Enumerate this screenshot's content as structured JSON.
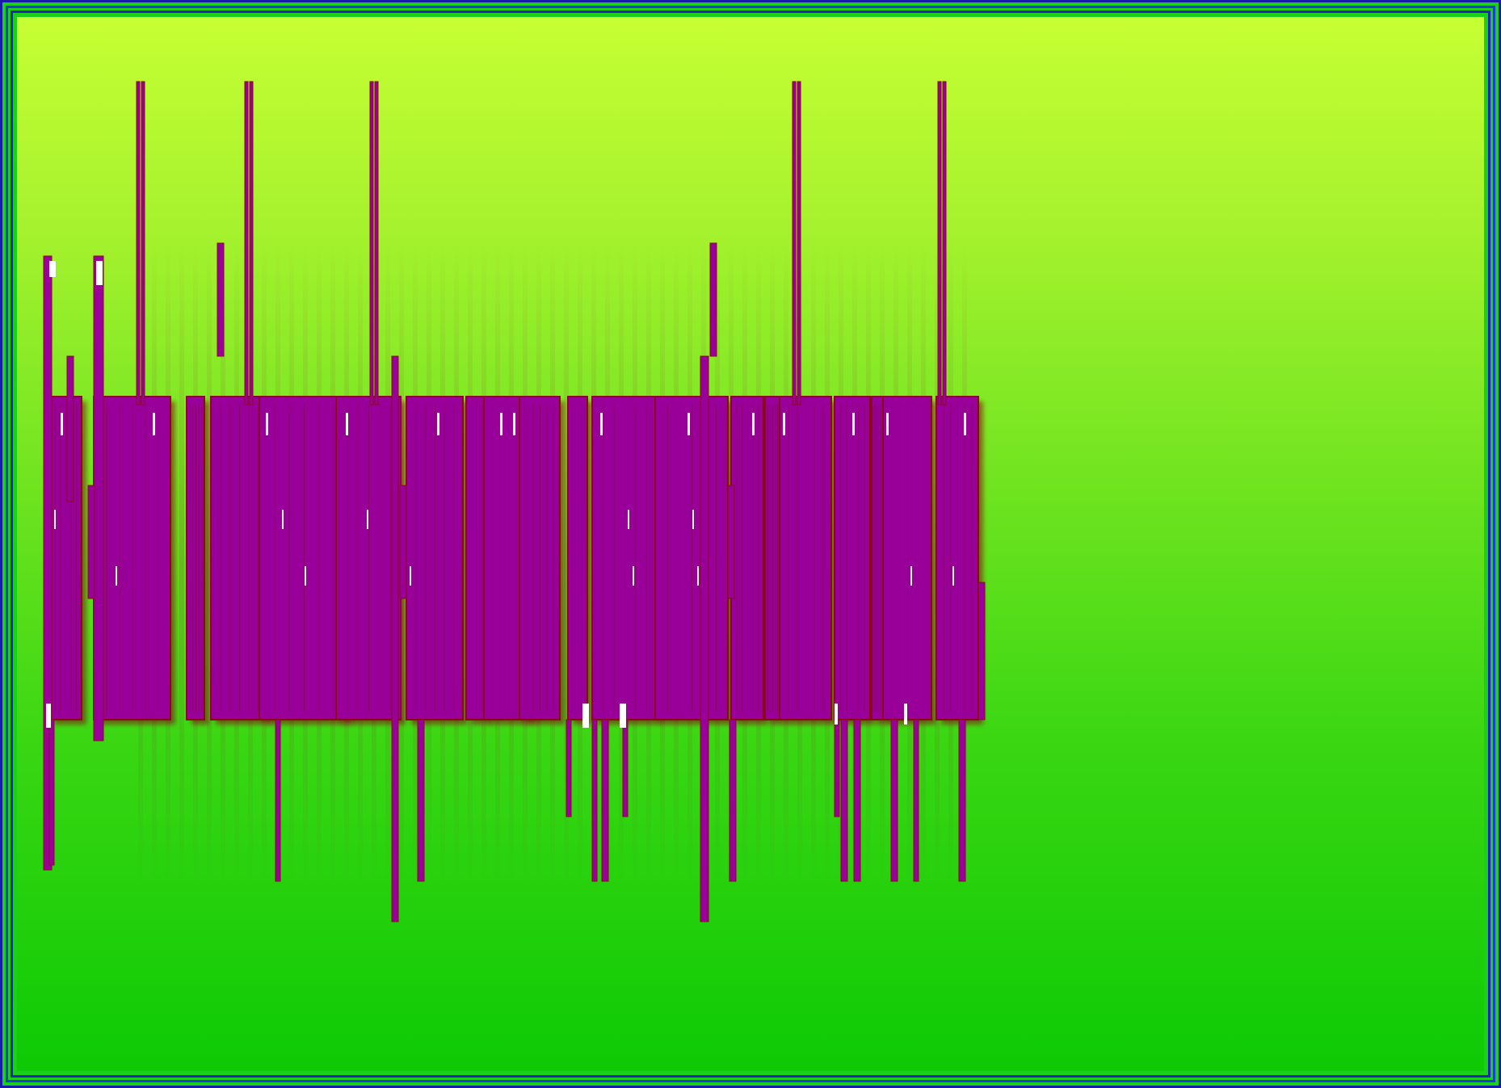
{
  "artwork": {
    "description_colors": {
      "background_top": "#c6ff33",
      "background_bottom": "#0dca04",
      "frame": "#1e3fd6",
      "glyph_fill": "#990099",
      "glyph_outline": "#8a0a1a",
      "highlight": "#ffffff"
    }
  }
}
